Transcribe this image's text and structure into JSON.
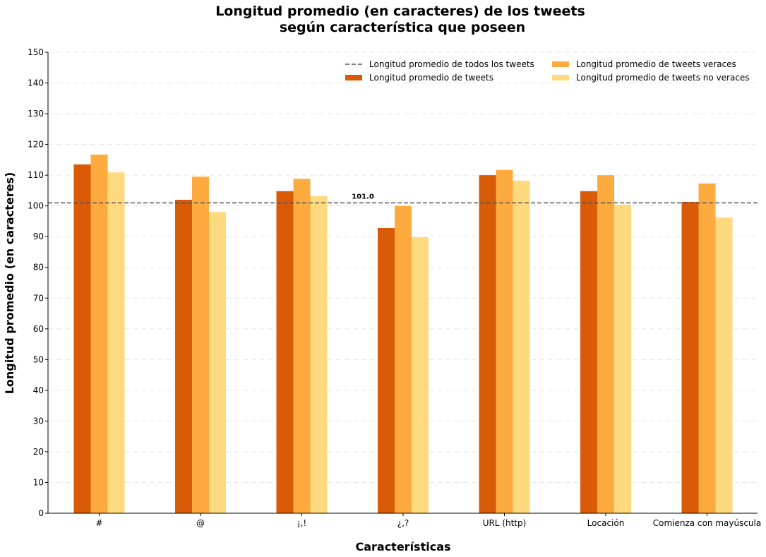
{
  "chart_data": {
    "type": "bar",
    "title_lines": [
      "Longitud promedio (en caracteres) de los tweets",
      "según característica que poseen"
    ],
    "xlabel": "Características",
    "ylabel": "Longitud promedio (en caracteres)",
    "categories": [
      "#",
      "@",
      "¡,!",
      "¿,?",
      "URL (http)",
      "Locación",
      "Comienza con mayúscula"
    ],
    "series": [
      {
        "name": "Longitud promedio de tweets",
        "color": "#d95a07",
        "values": [
          113.5,
          102.0,
          104.8,
          92.8,
          110.0,
          104.8,
          101.3
        ]
      },
      {
        "name": "Longitud promedio de tweets veraces",
        "color": "#fdab3e",
        "values": [
          116.7,
          109.5,
          108.8,
          100.0,
          111.7,
          110.0,
          107.3
        ]
      },
      {
        "name": "Longitud promedio de tweets no veraces",
        "color": "#fed97d",
        "values": [
          110.9,
          98.0,
          103.2,
          89.8,
          108.2,
          100.4,
          96.2
        ]
      }
    ],
    "reference_line": {
      "name": "Longitud promedio de todos los tweets",
      "value": 101.0,
      "label": "101.0",
      "color": "#555555",
      "style": "dashed"
    },
    "ylim": [
      0,
      150
    ],
    "yticks": [
      0,
      10,
      20,
      30,
      40,
      50,
      60,
      70,
      80,
      90,
      100,
      110,
      120,
      130,
      140,
      150
    ],
    "grid": true,
    "legend": {
      "position": "top-right",
      "columns": 2
    }
  }
}
